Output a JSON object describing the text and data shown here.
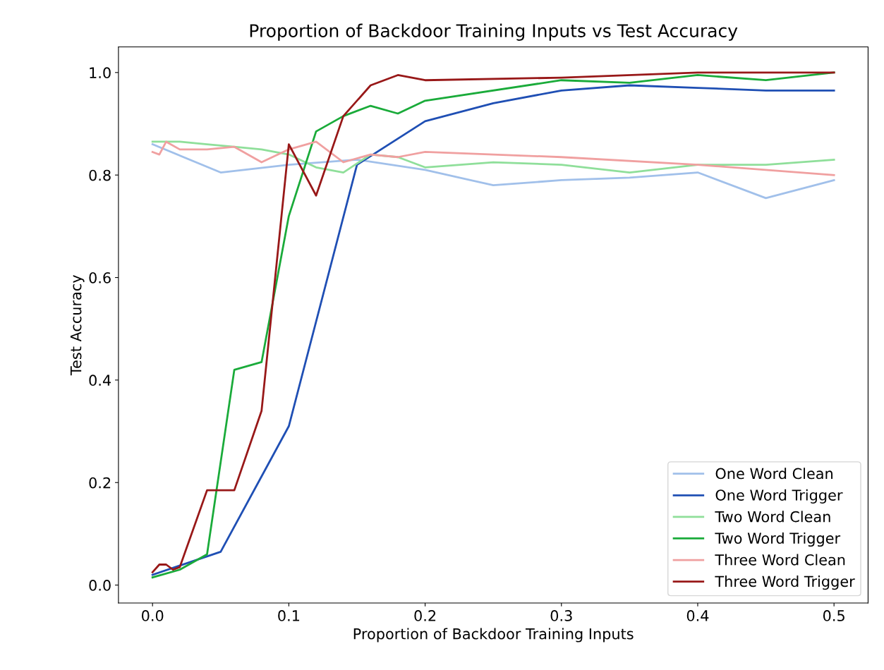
{
  "chart_data": {
    "type": "line",
    "title": "Proportion of Backdoor Training Inputs vs Test Accuracy",
    "xlabel": "Proportion of Backdoor Training Inputs",
    "ylabel": "Test Accuracy",
    "xlim": [
      -0.025,
      0.525
    ],
    "xticks": [
      {
        "value": 0,
        "label": "0.0"
      },
      0.1,
      0.2,
      0.3,
      0.4,
      0.5
    ],
    "ylim": [
      -0.035,
      1.05
    ],
    "yticks": [
      {
        "value": 0,
        "label": "0.0"
      },
      0.2,
      0.4,
      0.6,
      0.8,
      {
        "value": 1,
        "label": "1.0"
      }
    ],
    "grid": false,
    "legend": "bottom right",
    "series": [
      {
        "name": "One Word Clean",
        "color": "#a1c0ea",
        "x": [
          0,
          0.05,
          0.1,
          0.15,
          0.2,
          0.25,
          0.3,
          0.35,
          0.4,
          0.45,
          0.5
        ],
        "values": [
          0.86,
          0.805,
          0.82,
          0.83,
          0.81,
          0.78,
          0.79,
          0.795,
          0.805,
          0.755,
          0.79
        ]
      },
      {
        "name": "One Word Trigger",
        "color": "#1f4fb4",
        "x": [
          0,
          0.05,
          0.1,
          0.15,
          0.2,
          0.25,
          0.3,
          0.35,
          0.4,
          0.45,
          0.5
        ],
        "values": [
          0.02,
          0.065,
          0.31,
          0.82,
          0.905,
          0.94,
          0.965,
          0.975,
          0.97,
          0.965,
          0.965
        ]
      },
      {
        "name": "Two Word Clean",
        "color": "#8fdf9a",
        "x": [
          0,
          0.02,
          0.04,
          0.06,
          0.08,
          0.1,
          0.12,
          0.14,
          0.16,
          0.18,
          0.2,
          0.25,
          0.3,
          0.35,
          0.4,
          0.45,
          0.5
        ],
        "values": [
          0.865,
          0.865,
          0.86,
          0.855,
          0.85,
          0.84,
          0.815,
          0.805,
          0.84,
          0.835,
          0.815,
          0.825,
          0.82,
          0.805,
          0.82,
          0.82,
          0.83
        ]
      },
      {
        "name": "Two Word Trigger",
        "color": "#1aab3a",
        "x": [
          0,
          0.02,
          0.04,
          0.06,
          0.08,
          0.1,
          0.12,
          0.14,
          0.16,
          0.18,
          0.2,
          0.3,
          0.35,
          0.4,
          0.45,
          0.5
        ],
        "values": [
          0.015,
          0.03,
          0.06,
          0.42,
          0.435,
          0.72,
          0.885,
          0.915,
          0.935,
          0.92,
          0.945,
          0.985,
          0.98,
          0.995,
          0.985,
          1.0
        ]
      },
      {
        "name": "Three Word Clean",
        "color": "#f0a0a0",
        "x": [
          0,
          0.005,
          0.01,
          0.02,
          0.04,
          0.06,
          0.08,
          0.1,
          0.12,
          0.14,
          0.16,
          0.18,
          0.2,
          0.3,
          0.4,
          0.5
        ],
        "values": [
          0.845,
          0.84,
          0.865,
          0.85,
          0.85,
          0.855,
          0.825,
          0.85,
          0.865,
          0.825,
          0.84,
          0.835,
          0.845,
          0.835,
          0.82,
          0.8
        ]
      },
      {
        "name": "Three Word Trigger",
        "color": "#981818",
        "x": [
          0,
          0.005,
          0.01,
          0.015,
          0.02,
          0.04,
          0.06,
          0.08,
          0.1,
          0.12,
          0.14,
          0.16,
          0.18,
          0.2,
          0.3,
          0.4,
          0.5
        ],
        "values": [
          0.025,
          0.04,
          0.04,
          0.03,
          0.035,
          0.185,
          0.185,
          0.34,
          0.86,
          0.76,
          0.915,
          0.975,
          0.995,
          0.985,
          0.99,
          1.0,
          1.0
        ]
      }
    ]
  }
}
